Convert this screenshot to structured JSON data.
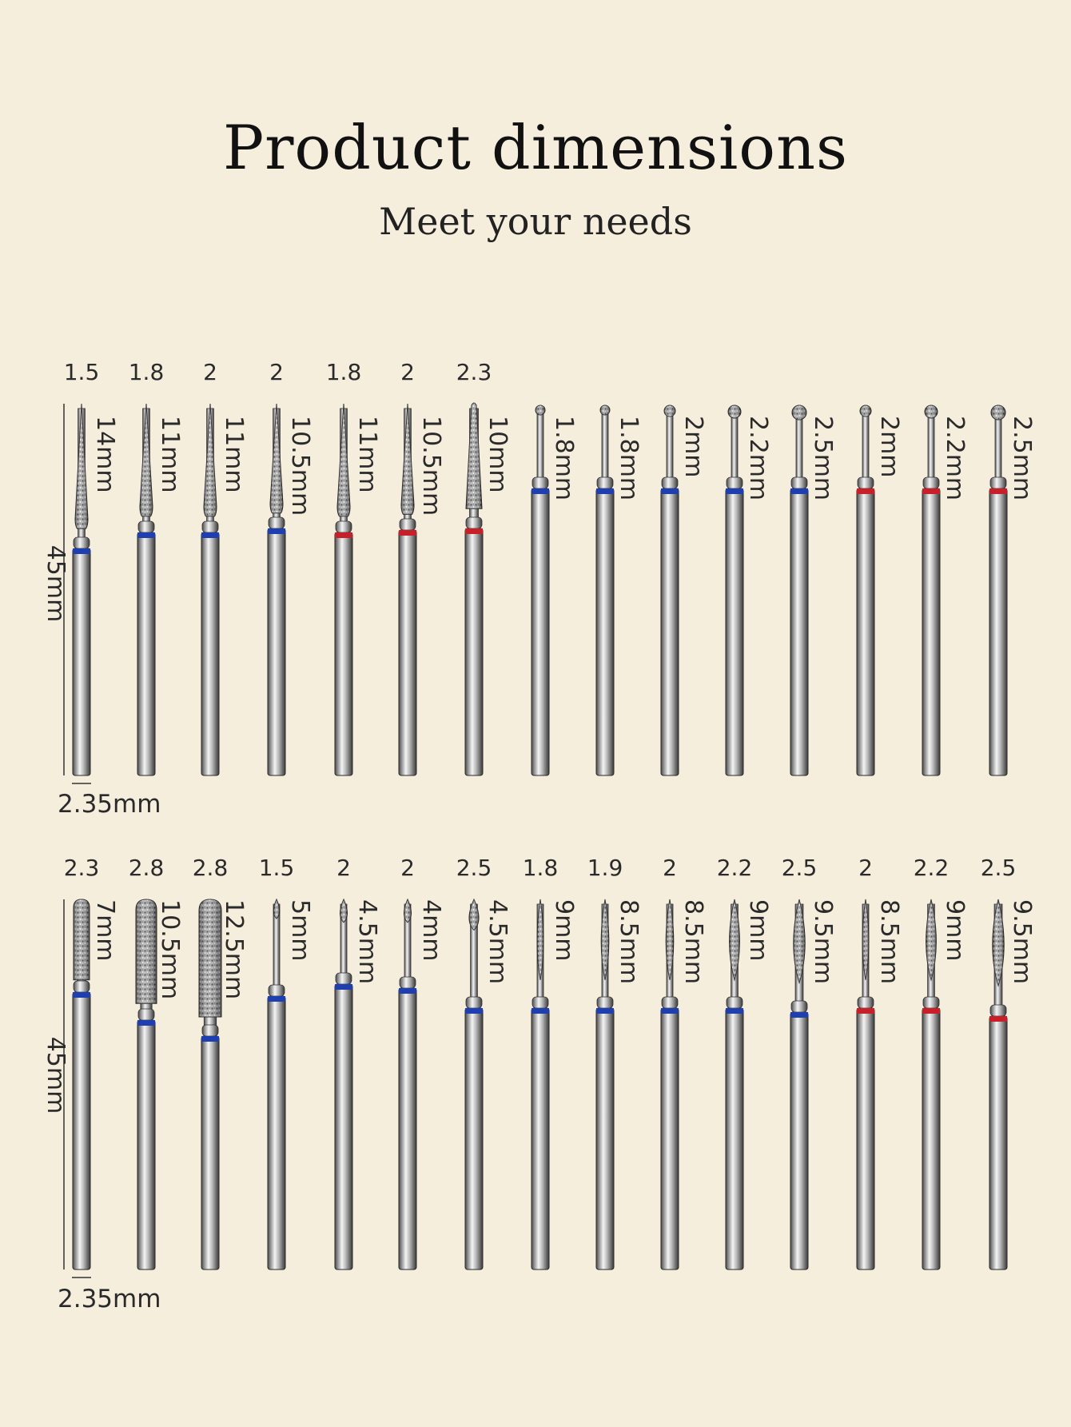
{
  "title": "Product dimensions",
  "subtitle": "Meet your needs",
  "colors": {
    "background": "#f6eedd",
    "blue_ring": "#1f3fb0",
    "red_ring": "#c8202a"
  },
  "rows": [
    {
      "total_length": "45mm",
      "shank_diameter": "2.35mm",
      "bits": [
        {
          "diameter": "1.5",
          "head_length": "14mm",
          "shape": "needle",
          "ring": "blue"
        },
        {
          "diameter": "1.8",
          "head_length": "11mm",
          "shape": "needle",
          "ring": "blue"
        },
        {
          "diameter": "2",
          "head_length": "11mm",
          "shape": "needle",
          "ring": "blue"
        },
        {
          "diameter": "2",
          "head_length": "10.5mm",
          "shape": "needle",
          "ring": "blue"
        },
        {
          "diameter": "1.8",
          "head_length": "11mm",
          "shape": "needle",
          "ring": "red"
        },
        {
          "diameter": "2",
          "head_length": "10.5mm",
          "shape": "needle",
          "ring": "red"
        },
        {
          "diameter": "2.3",
          "head_length": "10mm",
          "shape": "cone",
          "ring": "red"
        },
        {
          "diameter": "",
          "head_length": "1.8mm",
          "shape": "ball",
          "ring": "blue"
        },
        {
          "diameter": "",
          "head_length": "1.8mm",
          "shape": "ball",
          "ring": "blue"
        },
        {
          "diameter": "",
          "head_length": "2mm",
          "shape": "ball",
          "ring": "blue"
        },
        {
          "diameter": "",
          "head_length": "2.2mm",
          "shape": "ball",
          "ring": "blue"
        },
        {
          "diameter": "",
          "head_length": "2.5mm",
          "shape": "ball",
          "ring": "blue"
        },
        {
          "diameter": "",
          "head_length": "2mm",
          "shape": "ball",
          "ring": "red"
        },
        {
          "diameter": "",
          "head_length": "2.2mm",
          "shape": "ball",
          "ring": "red"
        },
        {
          "diameter": "",
          "head_length": "2.5mm",
          "shape": "ball",
          "ring": "red"
        }
      ]
    },
    {
      "total_length": "45mm",
      "shank_diameter": "2.35mm",
      "bits": [
        {
          "diameter": "2.3",
          "head_length": "7mm",
          "shape": "cylinder",
          "ring": "blue"
        },
        {
          "diameter": "2.8",
          "head_length": "10.5mm",
          "shape": "cylinder",
          "ring": "blue"
        },
        {
          "diameter": "2.8",
          "head_length": "12.5mm",
          "shape": "cylinder",
          "ring": "blue"
        },
        {
          "diameter": "1.5",
          "head_length": "5mm",
          "shape": "bud",
          "ring": "blue"
        },
        {
          "diameter": "2",
          "head_length": "4.5mm",
          "shape": "bud",
          "ring": "blue"
        },
        {
          "diameter": "2",
          "head_length": "4mm",
          "shape": "bud",
          "ring": "blue"
        },
        {
          "diameter": "2.5",
          "head_length": "4.5mm",
          "shape": "bud",
          "ring": "blue"
        },
        {
          "diameter": "1.8",
          "head_length": "9mm",
          "shape": "flame",
          "ring": "blue"
        },
        {
          "diameter": "1.9",
          "head_length": "8.5mm",
          "shape": "flame",
          "ring": "blue"
        },
        {
          "diameter": "2",
          "head_length": "8.5mm",
          "shape": "flame",
          "ring": "blue"
        },
        {
          "diameter": "2.2",
          "head_length": "9mm",
          "shape": "flame",
          "ring": "blue"
        },
        {
          "diameter": "2.5",
          "head_length": "9.5mm",
          "shape": "flame",
          "ring": "blue"
        },
        {
          "diameter": "2",
          "head_length": "8.5mm",
          "shape": "flame",
          "ring": "red"
        },
        {
          "diameter": "2.2",
          "head_length": "9mm",
          "shape": "flame",
          "ring": "red"
        },
        {
          "diameter": "2.5",
          "head_length": "9.5mm",
          "shape": "flame",
          "ring": "red"
        }
      ]
    }
  ]
}
